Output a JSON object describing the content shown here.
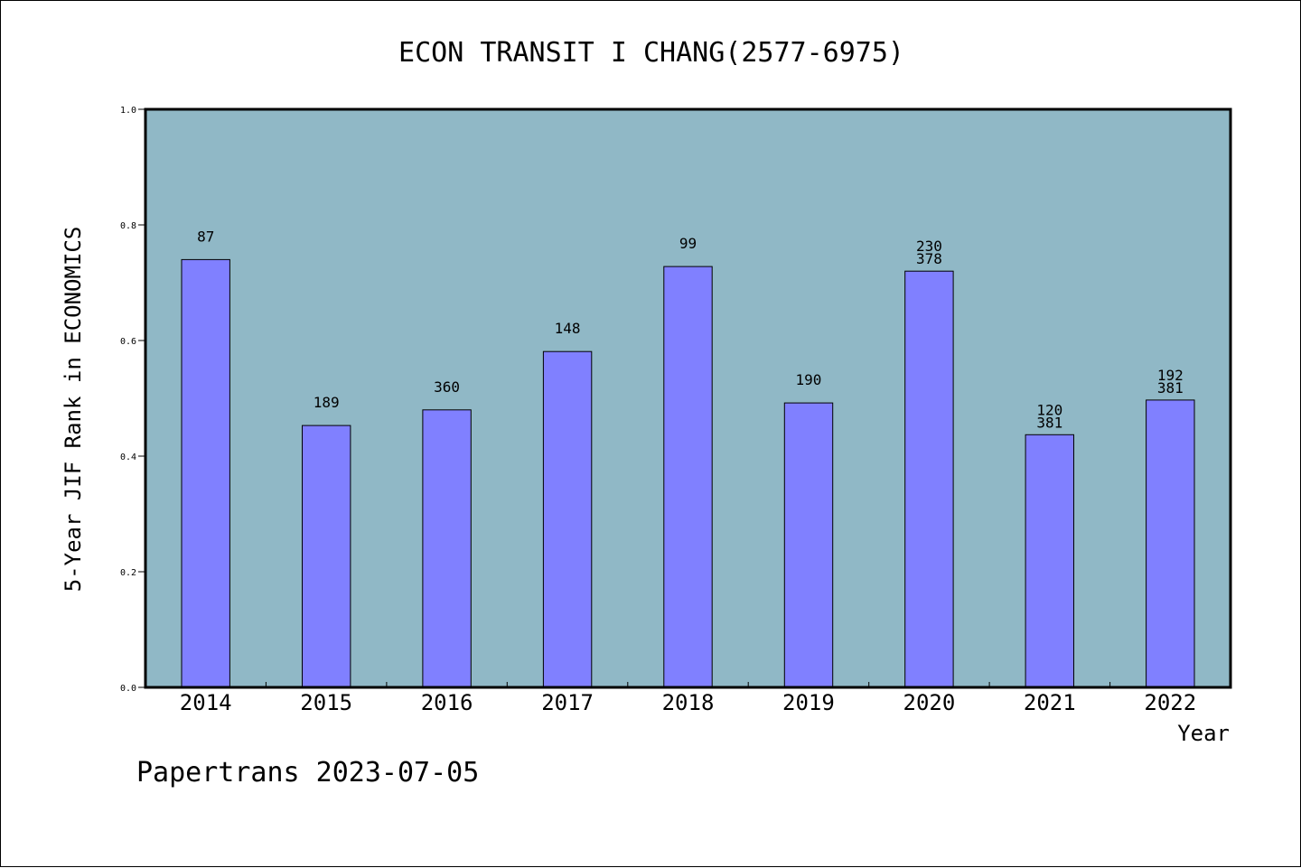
{
  "chart_data": {
    "type": "bar",
    "title": "ECON TRANSIT I CHANG(2577-6975)",
    "xlabel": "Year",
    "ylabel": "5-Year JIF Rank in ECONOMICS",
    "ylim": [
      0.0,
      1.0
    ],
    "yticks": [
      "0.0",
      "0.2",
      "0.4",
      "0.6",
      "0.8",
      "1.0"
    ],
    "grid": false,
    "legend": "none",
    "categories": [
      "2014",
      "2015",
      "2016",
      "2017",
      "2018",
      "2019",
      "2020",
      "2021",
      "2022"
    ],
    "values": [
      0.74,
      0.453,
      0.48,
      0.581,
      0.728,
      0.492,
      0.72,
      0.437,
      0.497
    ],
    "bar_labels": [
      [
        "87"
      ],
      [
        "189"
      ],
      [
        "360"
      ],
      [
        "148"
      ],
      [
        "99"
      ],
      [
        "190"
      ],
      [
        "230",
        "378"
      ],
      [
        "120",
        "381"
      ],
      [
        "192",
        "381"
      ]
    ],
    "colors": {
      "plot_bg": "#90b8c6",
      "bar_fill": "#8080ff",
      "bar_stroke": "#000000"
    }
  },
  "footer": {
    "text": "Papertrans 2023-07-05"
  }
}
